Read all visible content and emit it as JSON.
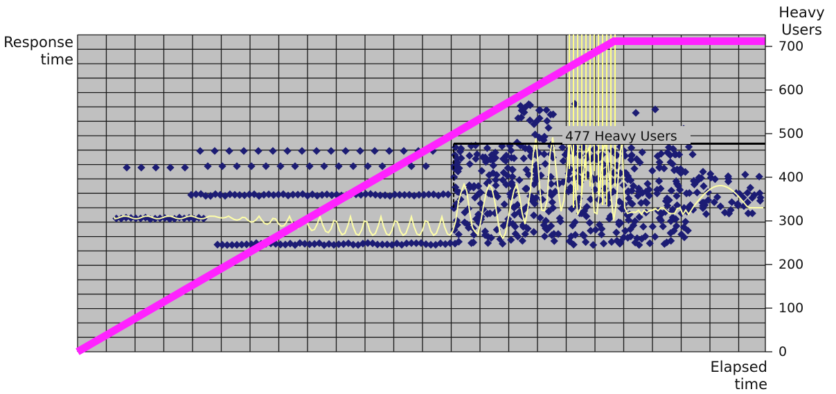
{
  "chart_data": {
    "type": "scatter",
    "ylabel": "Response time",
    "xlabel": "Elapsed time",
    "y2label": "Heavy Users",
    "y2lim": [
      0,
      700
    ],
    "y2ticks": [
      "0",
      "100",
      "200",
      "300",
      "400",
      "500",
      "600",
      "700"
    ],
    "grid": true,
    "annotation": {
      "text": "477 Heavy Users",
      "value": 477
    },
    "colors": {
      "plot_bg": "#c0c0c0",
      "grid": "#1a1a1a",
      "users": "#ff22ff",
      "scatter": "#1c1c74",
      "response_line": "#ffffa8",
      "spikes": "#ffff88",
      "annotation_line": "#000000"
    },
    "users_series": {
      "elapsed": [
        0,
        78,
        100
      ],
      "heavy_users": [
        0,
        712,
        712
      ]
    }
  }
}
